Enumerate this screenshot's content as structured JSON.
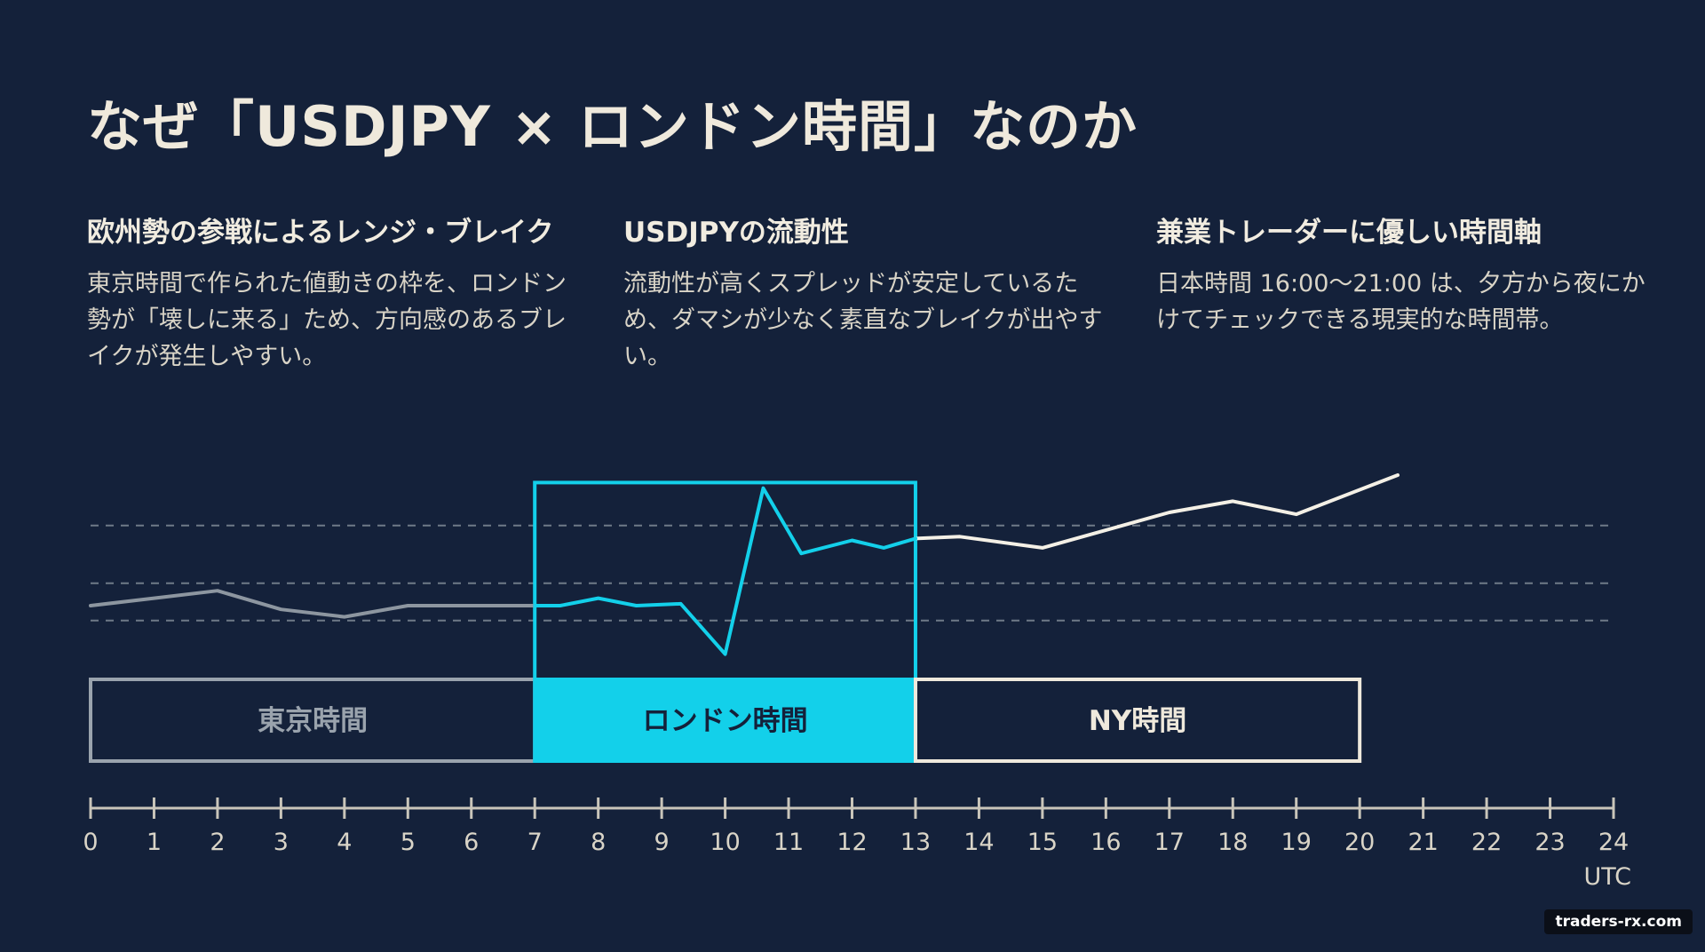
{
  "title": "なぜ「USDJPY × ロンドン時間」なのか",
  "columns": [
    {
      "heading": "欧州勢の参戦によるレンジ・ブレイク",
      "body": "東京時間で作られた値動きの枠を、ロンドン勢が「壊しに来る」ため、方向感のあるブレイクが発生しやすい。"
    },
    {
      "heading": "USDJPYの流動性",
      "body": "流動性が高くスプレッドが安定しているため、ダマシが少なく素直なブレイクが出やすい。"
    },
    {
      "heading": "兼業トレーダーに優しい時間軸",
      "body": "日本時間 16:00〜21:00 は、夕方から夜にかけてチェックできる現実的な時間帯。"
    }
  ],
  "sessions": [
    {
      "label": "東京時間",
      "start": 0,
      "end": 7,
      "color": "#9aa3ad",
      "fill": "none",
      "text_color": "#9aa3ad"
    },
    {
      "label": "ロンドン時間",
      "start": 7,
      "end": 13,
      "color": "#13d0ea",
      "fill": "#13d0ea",
      "text_color": "#14213a"
    },
    {
      "label": "NY時間",
      "start": 13,
      "end": 20,
      "color": "#efe9dc",
      "fill": "none",
      "text_color": "#efe9dc"
    }
  ],
  "axis": {
    "ticks": [
      "0",
      "1",
      "2",
      "3",
      "4",
      "5",
      "6",
      "7",
      "8",
      "9",
      "10",
      "11",
      "12",
      "13",
      "14",
      "15",
      "16",
      "17",
      "18",
      "19",
      "20",
      "21",
      "22",
      "23",
      "24"
    ],
    "unit": "UTC"
  },
  "price_series": {
    "tokyo": [
      [
        0,
        0.3
      ],
      [
        1,
        0.34
      ],
      [
        2,
        0.38
      ],
      [
        3,
        0.28
      ],
      [
        4,
        0.24
      ],
      [
        5,
        0.3
      ],
      [
        6,
        0.3
      ],
      [
        7,
        0.3
      ]
    ],
    "london": [
      [
        7,
        0.3
      ],
      [
        7.4,
        0.3
      ],
      [
        8,
        0.34
      ],
      [
        8.6,
        0.3
      ],
      [
        9.3,
        0.31
      ],
      [
        10,
        0.04
      ],
      [
        10.6,
        0.93
      ],
      [
        11.2,
        0.58
      ],
      [
        12,
        0.65
      ],
      [
        12.5,
        0.61
      ],
      [
        13,
        0.66
      ]
    ],
    "ny": [
      [
        13,
        0.66
      ],
      [
        13.7,
        0.67
      ],
      [
        15,
        0.61
      ],
      [
        17,
        0.8
      ],
      [
        18,
        0.86
      ],
      [
        19,
        0.79
      ],
      [
        20.6,
        1.0
      ]
    ],
    "range_levels": [
      0.22,
      0.42,
      0.73
    ],
    "colors": {
      "tokyo": "#8d96a0",
      "london": "#13d0ea",
      "ny": "#f4f0e6",
      "dashed": "#6f7a88"
    }
  },
  "watermark": "traders-rx.com"
}
